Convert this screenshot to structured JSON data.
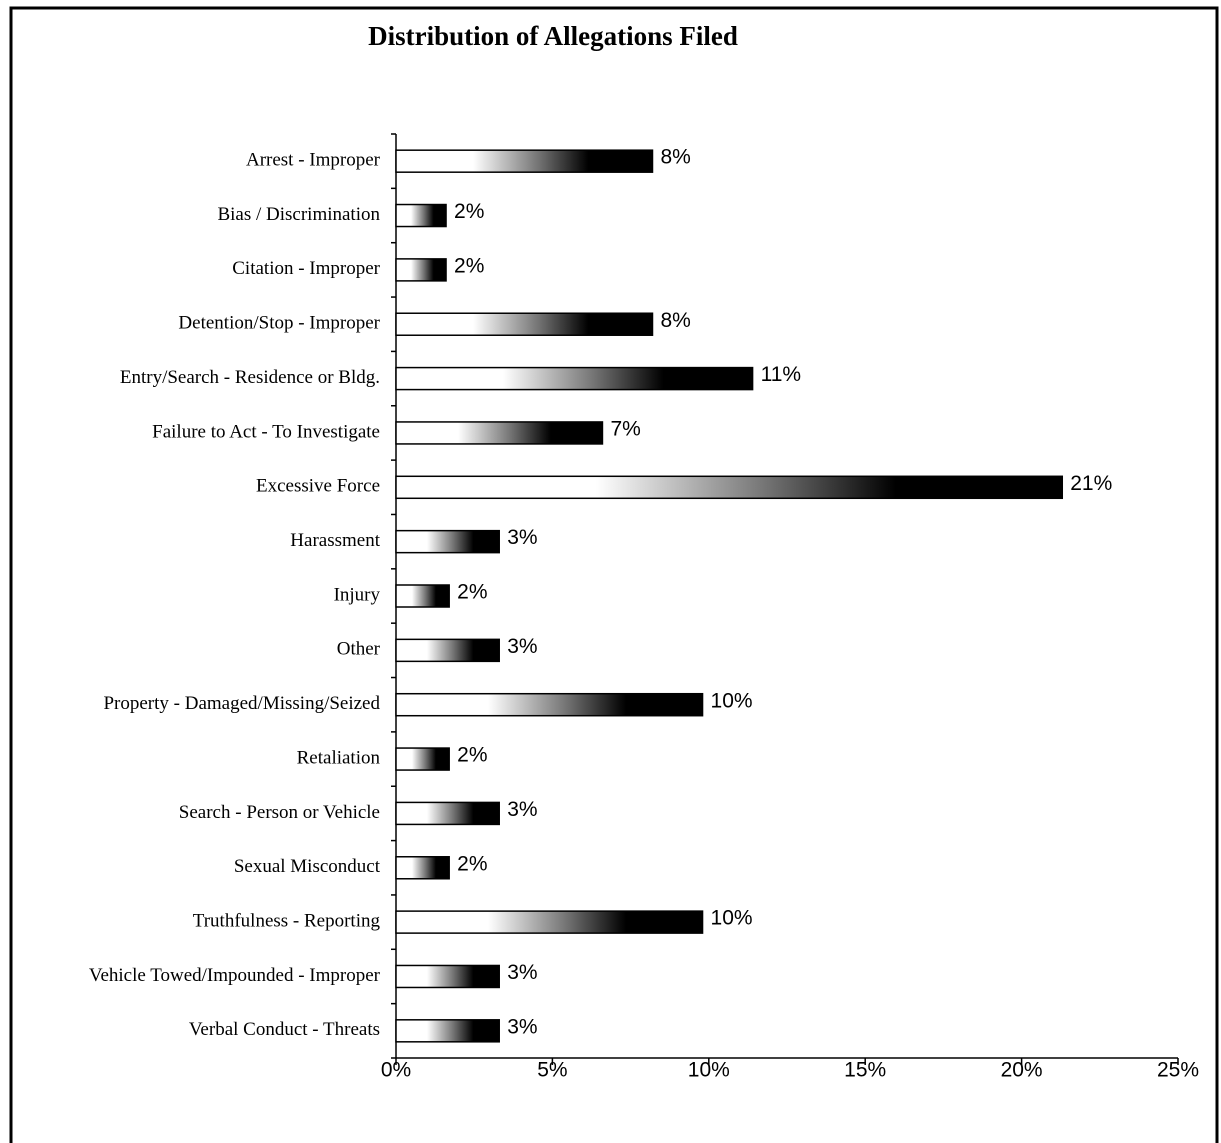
{
  "chart_data": {
    "type": "bar",
    "orientation": "horizontal",
    "title": "Distribution of Allegations Filed",
    "categories": [
      "Arrest - Improper",
      "Bias / Discrimination",
      "Citation - Improper",
      "Detention/Stop - Improper",
      "Entry/Search - Residence or Bldg.",
      "Failure to Act - To Investigate",
      "Excessive Force",
      "Harassment",
      "Injury",
      "Other",
      "Property - Damaged/Missing/Seized",
      "Retaliation",
      "Search - Person or Vehicle",
      "Sexual Misconduct",
      "Truthfulness - Reporting",
      "Vehicle Towed/Impounded - Improper",
      "Verbal Conduct - Threats"
    ],
    "values": [
      8.2,
      1.6,
      1.6,
      8.2,
      11.4,
      6.6,
      21.3,
      3.3,
      1.7,
      3.3,
      9.8,
      1.7,
      3.3,
      1.7,
      9.8,
      3.3,
      3.3
    ],
    "value_labels": [
      "8%",
      "2%",
      "2%",
      "8%",
      "11%",
      "7%",
      "21%",
      "3%",
      "2%",
      "3%",
      "10%",
      "2%",
      "3%",
      "2%",
      "10%",
      "3%",
      "3%"
    ],
    "color": "#000000",
    "xlim": [
      0,
      25
    ],
    "xticks": [
      {
        "value": 0,
        "label": "0%"
      },
      {
        "value": 5,
        "label": "5%"
      },
      {
        "value": 10,
        "label": "10%"
      },
      {
        "value": 15,
        "label": "15%"
      },
      {
        "value": 20,
        "label": "20%"
      },
      {
        "value": 25,
        "label": "25%"
      }
    ],
    "grid": false
  }
}
